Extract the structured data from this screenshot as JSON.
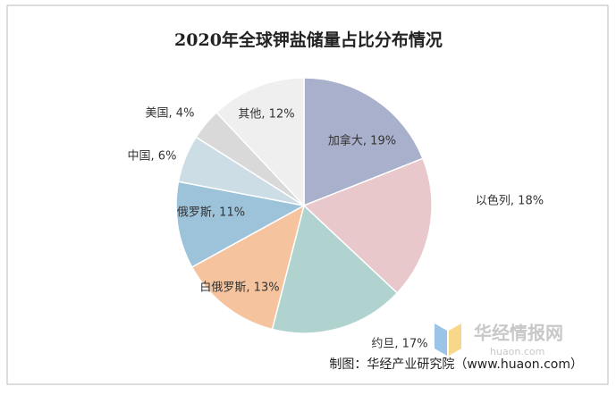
{
  "chart_data": {
    "type": "pie",
    "title": "2020年全球钾盐储量占比分布情况",
    "values": [
      19,
      18,
      17,
      13,
      11,
      6,
      4,
      12
    ],
    "value_labels": [
      "加拿大, 19%",
      "以色列, 18%",
      "约旦, 17%",
      "白俄罗斯, 13%",
      "俄罗斯, 11%",
      "中国, 6%",
      "美国, 4%",
      "其他, 12%"
    ],
    "colors": [
      "#a9b0cc",
      "#e8c8cb",
      "#b0d3d0",
      "#f5c49e",
      "#9cc3da",
      "#ccdde6",
      "#d9d9d9",
      "#efefef"
    ],
    "source": "制图：华经产业研究院（www.huaon.com）",
    "watermark": "华经情报网",
    "watermark_url": "huaon.com"
  }
}
